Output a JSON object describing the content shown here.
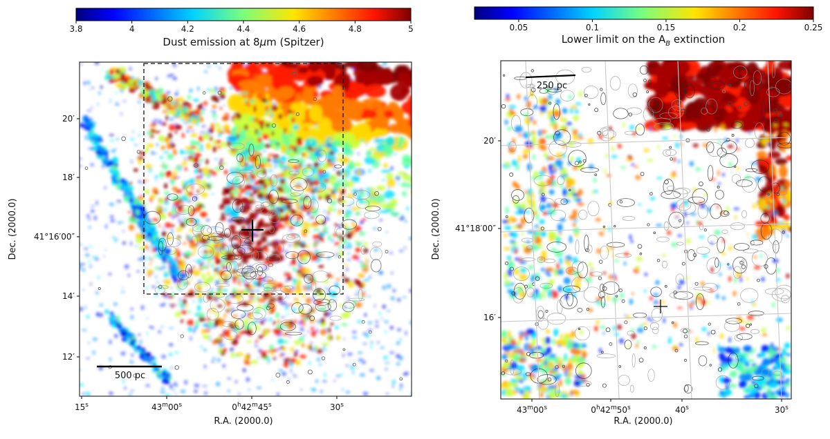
{
  "chart_data": [
    {
      "type": "heatmap",
      "colorbar": {
        "label_prefix": "Dust emission at 8",
        "label_mu": "μ",
        "label_suffix": "m (Spitzer)",
        "ticks": [
          "3.8",
          "4",
          "4.2",
          "4.4",
          "4.6",
          "4.8",
          "5"
        ],
        "range": [
          3.8,
          5
        ],
        "colormap": "jet"
      },
      "xlabel": "R.A. (2000.0)",
      "ylabel": "Dec. (2000.0)",
      "xticks": [
        {
          "pre": "15",
          "sup": "s"
        },
        {
          "pre": "43",
          "sup": "m",
          "mid": "00",
          "sup2": "s"
        },
        {
          "pre": "0",
          "sup": "h",
          "mid": "42",
          "sup2": "m",
          "mid2": "45",
          "sup3": "s"
        },
        {
          "pre": "30",
          "sup": "s"
        }
      ],
      "yticks": [
        "20′",
        "18′",
        "41°16′00″",
        "14′",
        "12′"
      ],
      "scale_bar": "500 pc",
      "grid": false
    },
    {
      "type": "heatmap",
      "colorbar": {
        "label_prefix": "Lower limit on the A",
        "label_sub": "B",
        "label_suffix": " extinction",
        "ticks": [
          "0.05",
          "0.1",
          "0.15",
          "0.2",
          "0.25"
        ],
        "range": [
          0.02,
          0.25
        ],
        "colormap": "jet"
      },
      "xlabel": "R.A. (2000.0)",
      "ylabel": "Dec. (2000.0)",
      "xticks": [
        {
          "pre": "43",
          "sup": "m",
          "mid": "00",
          "sup2": "s"
        },
        {
          "pre": "0",
          "sup": "h",
          "mid": "42",
          "sup2": "m",
          "mid2": "50",
          "sup3": "s"
        },
        {
          "pre": "40",
          "sup": "s"
        },
        {
          "pre": "30",
          "sup": "s"
        }
      ],
      "yticks": [
        "20′",
        "41°18′00″",
        "16′"
      ],
      "scale_bar": "250 pc",
      "grid": true
    }
  ]
}
